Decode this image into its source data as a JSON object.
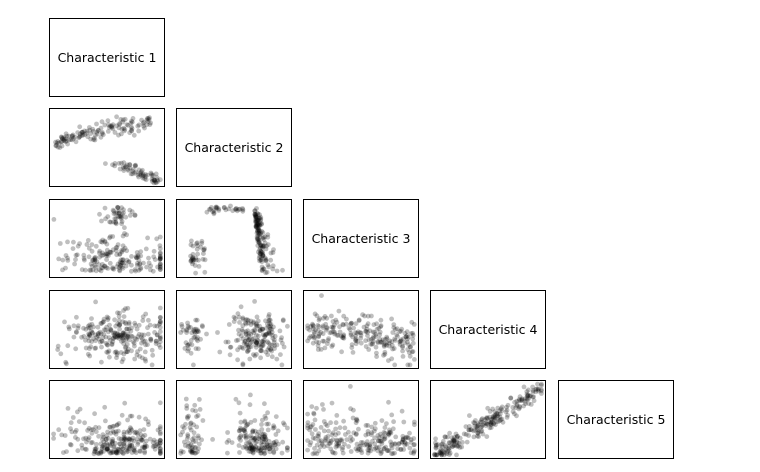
{
  "chart_data": {
    "type": "scatter",
    "layout": "lower-triangle scatterplot matrix",
    "variables": [
      "Characteristic 1",
      "Characteristic 2",
      "Characteristic 3",
      "Characteristic 4",
      "Characteristic 5"
    ],
    "diagonal_labels": [
      "Characteristic 1",
      "Characteristic 2",
      "Characteristic 3",
      "Characteristic 4",
      "Characteristic 5"
    ],
    "axes_shown": false,
    "grid": false,
    "point_color": "#000000",
    "point_opacity": 0.25,
    "panels": [
      {
        "row": 2,
        "col": 1,
        "pattern": "two-arcs",
        "n": 190
      },
      {
        "row": 3,
        "col": 1,
        "pattern": "cluster-top-diffuse",
        "n": 220
      },
      {
        "row": 3,
        "col": 2,
        "pattern": "peak-right",
        "n": 200
      },
      {
        "row": 4,
        "col": 1,
        "pattern": "horizontal-band",
        "n": 240
      },
      {
        "row": 4,
        "col": 2,
        "pattern": "two-column-band",
        "n": 220
      },
      {
        "row": 4,
        "col": 3,
        "pattern": "decreasing-band",
        "n": 230
      },
      {
        "row": 5,
        "col": 1,
        "pattern": "bottom-heavy",
        "n": 240
      },
      {
        "row": 5,
        "col": 2,
        "pattern": "two-column-bottom",
        "n": 220
      },
      {
        "row": 5,
        "col": 3,
        "pattern": "bottom-decreasing",
        "n": 230
      },
      {
        "row": 5,
        "col": 4,
        "pattern": "positive-linear",
        "n": 230
      }
    ]
  }
}
